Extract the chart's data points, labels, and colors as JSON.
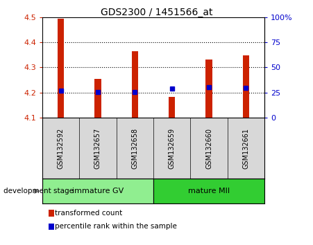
{
  "title": "GDS2300 / 1451566_at",
  "samples": [
    "GSM132592",
    "GSM132657",
    "GSM132658",
    "GSM132659",
    "GSM132660",
    "GSM132661"
  ],
  "bar_values": [
    4.495,
    4.253,
    4.365,
    4.182,
    4.33,
    4.348
  ],
  "bar_bottom": 4.1,
  "percentile_values": [
    4.207,
    4.202,
    4.202,
    4.215,
    4.221,
    4.219
  ],
  "ylim": [
    4.1,
    4.5
  ],
  "yticks": [
    4.1,
    4.2,
    4.3,
    4.4,
    4.5
  ],
  "right_yticks": [
    0,
    25,
    50,
    75,
    100
  ],
  "right_ylabels": [
    "0",
    "25",
    "50",
    "75",
    "100%"
  ],
  "dotted_lines": [
    4.2,
    4.3,
    4.4
  ],
  "groups": [
    {
      "label": "immature GV",
      "indices": [
        0,
        1,
        2
      ],
      "color": "#90EE90"
    },
    {
      "label": "mature MII",
      "indices": [
        3,
        4,
        5
      ],
      "color": "#32CD32"
    }
  ],
  "bar_color": "#CC2200",
  "percentile_color": "#0000CC",
  "axis_label_color_left": "#CC2200",
  "axis_label_color_right": "#0000CC",
  "group_label": "development stage",
  "legend_items": [
    {
      "color": "#CC2200",
      "label": "transformed count"
    },
    {
      "color": "#0000CC",
      "label": "percentile rank within the sample"
    }
  ],
  "sample_area_bg": "#d8d8d8",
  "plot_bg_color": "#ffffff",
  "bar_width": 0.18
}
